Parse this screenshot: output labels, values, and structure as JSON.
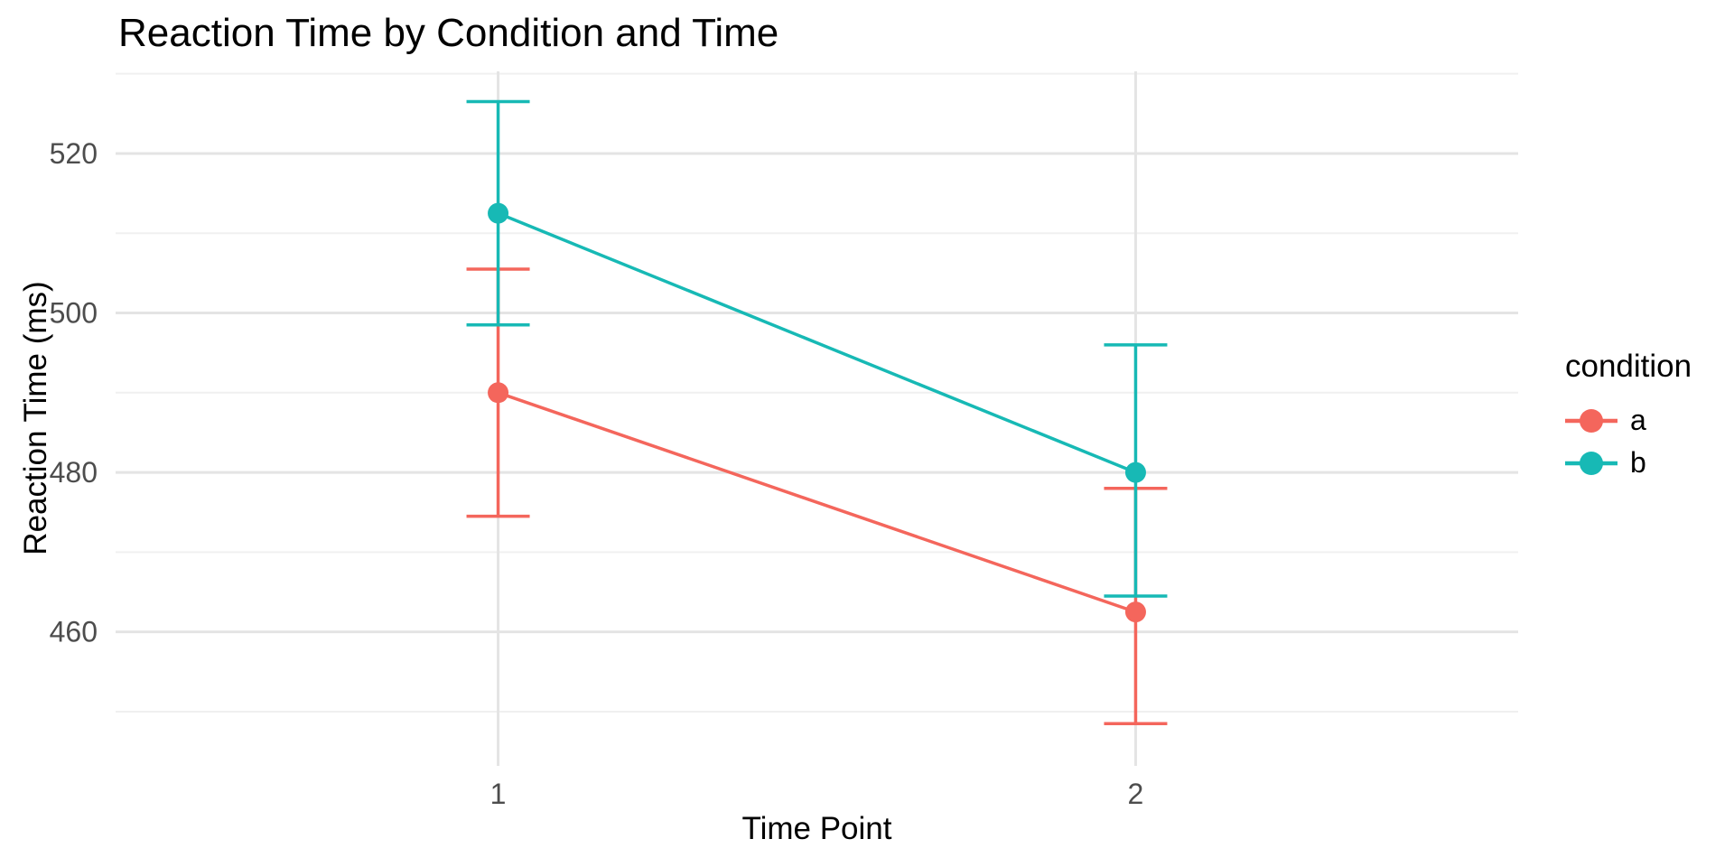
{
  "title": "Reaction Time by Condition and Time",
  "chart_data": {
    "type": "line",
    "title": "Reaction Time by Condition and Time",
    "xlabel": "Time Point",
    "ylabel": "Reaction Time (ms)",
    "x": [
      1,
      2
    ],
    "x_tick_labels": [
      "1",
      "2"
    ],
    "y_ticks_major": [
      520,
      500,
      480,
      460
    ],
    "y_tick_labels": [
      "520",
      "500",
      "480",
      "460"
    ],
    "y_ticks_minor": [
      530,
      510,
      490,
      470,
      450
    ],
    "ylim": [
      443.2,
      530.3
    ],
    "grid": true,
    "error_bars": true,
    "series": [
      {
        "name": "a",
        "color": "#F4665C",
        "points": [
          {
            "x": 1,
            "mean": 490.0,
            "ci_low": 474.5,
            "ci_high": 505.5
          },
          {
            "x": 2,
            "mean": 462.5,
            "ci_low": 448.5,
            "ci_high": 478.0
          }
        ]
      },
      {
        "name": "b",
        "color": "#17B9B5",
        "points": [
          {
            "x": 1,
            "mean": 512.5,
            "ci_low": 498.5,
            "ci_high": 526.5
          },
          {
            "x": 2,
            "mean": 480.0,
            "ci_low": 464.5,
            "ci_high": 496.0
          }
        ]
      }
    ],
    "legend": {
      "title": "condition",
      "position": "right",
      "entries": [
        "a",
        "b"
      ]
    }
  },
  "theme": {
    "background": "#FFFFFF",
    "grid_major_color": "#E4E4E4",
    "grid_minor_color": "#F0F0F0",
    "tick_label_color": "#4D4D4D",
    "text_color": "#000000"
  }
}
